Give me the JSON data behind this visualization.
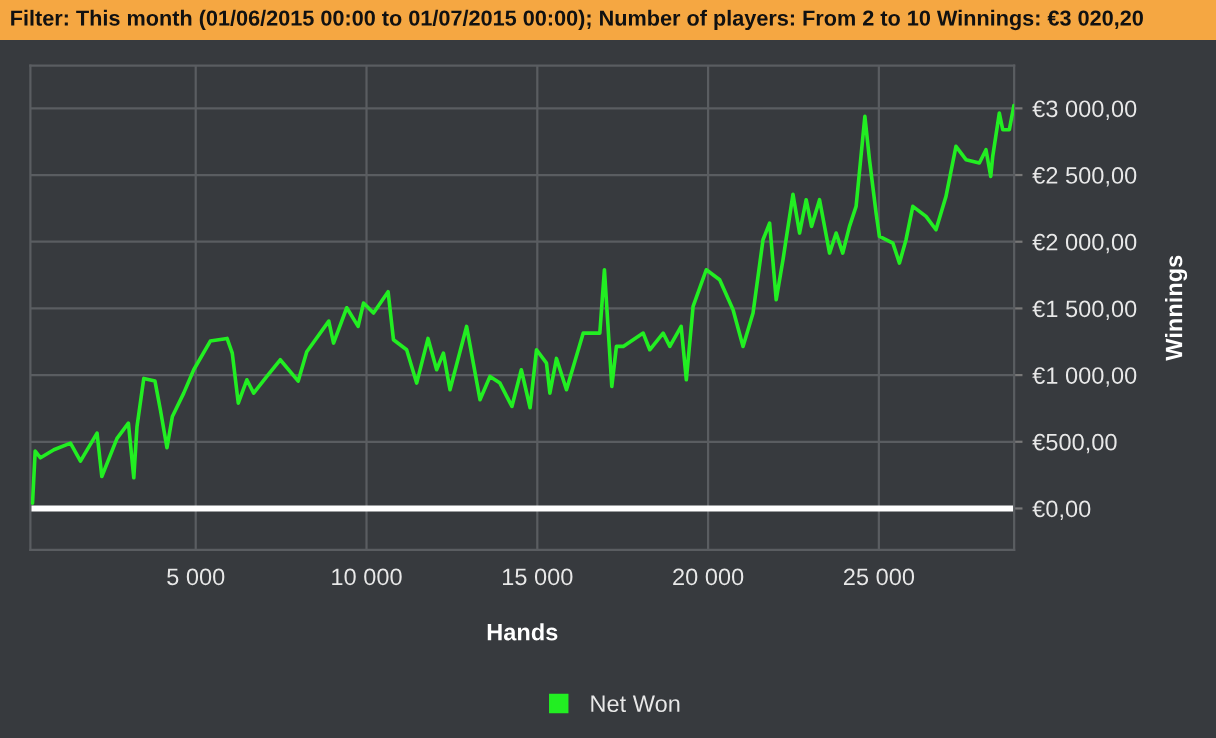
{
  "chart_data": {
    "type": "line",
    "title": "Filter: This month (01/06/2015 00:00 to 01/07/2015 00:00); Number of players: From 2 to 10 Winnings: €3 020,20",
    "xlabel": "Hands",
    "ylabel": "Winnings",
    "x": [
      222,
      300,
      456,
      848,
      1333,
      1626,
      2111,
      2251,
      2696,
      3029,
      3187,
      3281,
      3479,
      3807,
      3965,
      4158,
      4316,
      4649,
      4942,
      5427,
      5918,
      6070,
      6246,
      6497,
      6696,
      7082,
      7474,
      8000,
      8251,
      8895,
      9035,
      9421,
      9754,
      9912,
      10205,
      10632,
      10789,
      11175,
      11468,
      11801,
      12053,
      12251,
      12444,
      12930,
      13322,
      13614,
      13906,
      14257,
      14532,
      14789,
      14977,
      15269,
      15368,
      15562,
      15854,
      16345,
      16830,
      16965,
      17181,
      17316,
      17515,
      18100,
      18292,
      18684,
      18880,
      19211,
      19363,
      19561,
      19947,
      20339,
      20731,
      21023,
      21316,
      21608,
      21801,
      21994,
      22193,
      22485,
      22678,
      22872,
      23029,
      23263,
      23556,
      23749,
      23942,
      24140,
      24333,
      24590,
      24725,
      24918,
      25017,
      25409,
      25602,
      25795,
      25994,
      26380,
      26672,
      26965,
      27257,
      27550,
      27942,
      28135,
      28275,
      28333,
      28526,
      28626,
      28819,
      28953
    ],
    "series": [
      {
        "name": "Net Won",
        "color": "#22ee22",
        "values": [
          39,
          430,
          380,
          440,
          490,
          355,
          565,
          240,
          525,
          640,
          230,
          615,
          975,
          955,
          740,
          455,
          690,
          865,
          1040,
          1255,
          1275,
          1165,
          790,
          965,
          865,
          990,
          1115,
          955,
          1175,
          1405,
          1240,
          1505,
          1365,
          1540,
          1465,
          1625,
          1265,
          1190,
          940,
          1275,
          1040,
          1165,
          890,
          1365,
          815,
          990,
          940,
          765,
          1040,
          755,
          1190,
          1090,
          865,
          1125,
          890,
          1315,
          1315,
          1790,
          915,
          1215,
          1215,
          1315,
          1190,
          1315,
          1215,
          1365,
          965,
          1515,
          1790,
          1715,
          1490,
          1215,
          1465,
          2015,
          2140,
          1565,
          1865,
          2355,
          2065,
          2315,
          2115,
          2315,
          1915,
          2065,
          1915,
          2115,
          2265,
          2940,
          2615,
          2215,
          2040,
          1990,
          1840,
          2015,
          2265,
          2190,
          2090,
          2340,
          2715,
          2615,
          2590,
          2690,
          2490,
          2640,
          2965,
          2840,
          2840,
          3020
        ]
      }
    ],
    "xlim": [
      160,
      28960
    ],
    "ylim": [
      -310,
      3320
    ],
    "xticks": [
      {
        "value": 5000,
        "label": "5 000"
      },
      {
        "value": 10000,
        "label": "10 000"
      },
      {
        "value": 15000,
        "label": "15 000"
      },
      {
        "value": 20000,
        "label": "20 000"
      },
      {
        "value": 25000,
        "label": "25 000"
      }
    ],
    "yticks": [
      {
        "value": 0,
        "label": "€0,00"
      },
      {
        "value": 500,
        "label": "€500,00"
      },
      {
        "value": 1000,
        "label": "€1 000,00"
      },
      {
        "value": 1500,
        "label": "€1 500,00"
      },
      {
        "value": 2000,
        "label": "€2 000,00"
      },
      {
        "value": 2500,
        "label": "€2 500,00"
      },
      {
        "value": 3000,
        "label": "€3 000,00"
      }
    ],
    "ref_lines": [
      {
        "axis": "y",
        "value": 0,
        "label": null,
        "color": "#ffffff"
      }
    ],
    "grid": true,
    "legend": "bottom",
    "marker": "none",
    "line_style": "solid"
  }
}
